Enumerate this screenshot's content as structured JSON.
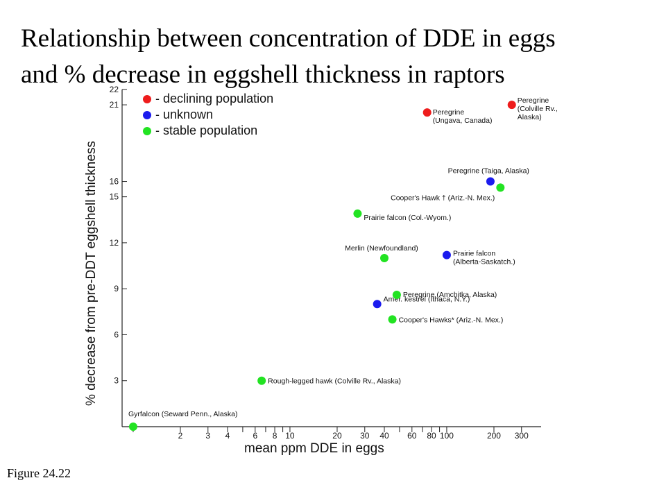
{
  "slide": {
    "title_line1": "Relationship between concentration of DDE in eggs",
    "title_line2": "and % decrease in eggshell thickness in raptors",
    "caption": "Figure 24.22"
  },
  "chart_data": {
    "type": "scatter",
    "title": "",
    "xlabel": "mean ppm DDE in eggs",
    "ylabel": "% decrease from pre-DDT eggshell thickness",
    "x_scale": "log",
    "xlim": [
      0.85,
      400
    ],
    "ylim": [
      0,
      22
    ],
    "x_ticks": [
      1,
      2,
      3,
      4,
      5,
      6,
      7,
      8,
      9,
      10,
      20,
      30,
      40,
      50,
      60,
      70,
      80,
      90,
      100,
      200,
      300
    ],
    "x_tick_labels": [
      {
        "x": 2,
        "label": "2"
      },
      {
        "x": 3,
        "label": "3"
      },
      {
        "x": 4,
        "label": "4"
      },
      {
        "x": 6,
        "label": "6"
      },
      {
        "x": 8,
        "label": "8"
      },
      {
        "x": 10,
        "label": "10"
      },
      {
        "x": 20,
        "label": "20"
      },
      {
        "x": 30,
        "label": "30"
      },
      {
        "x": 40,
        "label": "40"
      },
      {
        "x": 60,
        "label": "60"
      },
      {
        "x": 80,
        "label": "80"
      },
      {
        "x": 100,
        "label": "100"
      },
      {
        "x": 200,
        "label": "200"
      },
      {
        "x": 300,
        "label": "300"
      }
    ],
    "y_ticks": [
      3,
      6,
      9,
      12,
      15,
      16,
      21,
      22
    ],
    "y_tick_labels": [
      "3",
      "6",
      "9",
      "12",
      "15",
      "16",
      "21",
      "22"
    ],
    "legend": {
      "placement": "top-left",
      "entries": [
        {
          "name": "- declining population",
          "color": "#ee1c1c"
        },
        {
          "name": "- unknown",
          "color": "#1b1bee"
        },
        {
          "name": "- stable population",
          "color": "#22e322"
        }
      ]
    },
    "series": [
      {
        "name": "- declining population",
        "color": "#ee1c1c",
        "points": [
          {
            "x": 75,
            "y": 20.5,
            "label": [
              "Peregrine",
              "(Ungava, Canada)"
            ]
          },
          {
            "x": 260,
            "y": 21.0,
            "label": [
              "Peregrine",
              "(Colville Rv.,",
              "Alaska)"
            ]
          }
        ]
      },
      {
        "name": "- unknown",
        "color": "#1b1bee",
        "points": [
          {
            "x": 190,
            "y": 16.0,
            "label": [
              "Peregrine (Taiga, Alaska)"
            ]
          },
          {
            "x": 100,
            "y": 11.2,
            "label": [
              "Prairie falcon",
              "(Alberta-Saskatch.)"
            ]
          },
          {
            "x": 36,
            "y": 8.0,
            "label": [
              "Amer. kestrel (Ithaca, N.Y.)"
            ]
          }
        ]
      },
      {
        "name": "- stable population",
        "color": "#22e322",
        "points": [
          {
            "x": 220,
            "y": 15.6,
            "label": [
              "Cooper's Hawk † (Ariz.-N. Mex.)"
            ]
          },
          {
            "x": 27,
            "y": 13.9,
            "label": [
              "Prairie falcon (Col.-Wyom.)"
            ]
          },
          {
            "x": 40,
            "y": 11.0,
            "label": [
              "Merlin (Newfoundland)"
            ]
          },
          {
            "x": 48,
            "y": 8.6,
            "label": [
              "Peregrine (Amchitka, Alaska)"
            ]
          },
          {
            "x": 45,
            "y": 7.0,
            "label": [
              "Cooper's Hawks* (Ariz.-N. Mex.)"
            ]
          },
          {
            "x": 6.6,
            "y": 3.0,
            "label": [
              "Rough-legged hawk (Colville Rv., Alaska)"
            ]
          },
          {
            "x": 1.0,
            "y": 0,
            "label": [
              "Gyrfalcon (Seward Penn., Alaska)"
            ]
          }
        ]
      }
    ]
  }
}
